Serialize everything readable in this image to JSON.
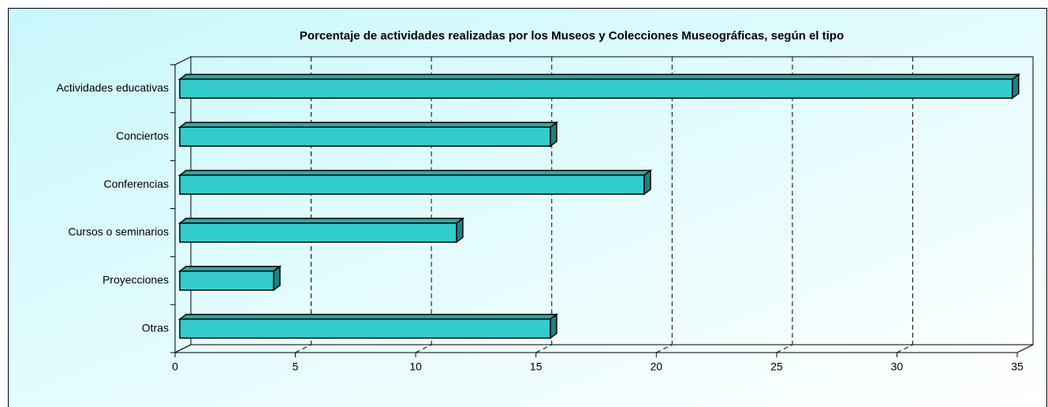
{
  "chart_data": {
    "type": "bar",
    "orientation": "horizontal",
    "three_d": true,
    "title": "Porcentaje de actividades realizadas por los Museos y Colecciones Museográficas, según el tipo",
    "categories": [
      "Actividades educativas",
      "Conciertos",
      "Conferencias",
      "Cursos o seminarios",
      "Proyecciones",
      "Otras"
    ],
    "values": [
      34.6,
      15.4,
      19.3,
      11.5,
      3.9,
      15.4
    ],
    "color": "#33cccc",
    "xlim": [
      0,
      35
    ],
    "xticks": [
      0,
      5,
      10,
      15,
      20,
      25,
      30,
      35
    ],
    "grid": true
  }
}
